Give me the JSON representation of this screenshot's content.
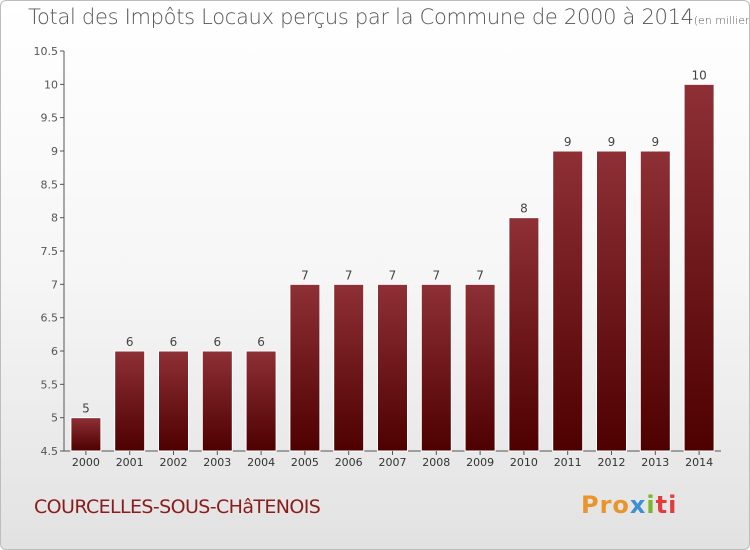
{
  "title": "Total des Impôts Locaux perçus par la Commune de 2000 à 2014",
  "subtitle": "(en milliers d'€)",
  "commune": "COURCELLES-SOUS-CHâTENOIS",
  "logo": {
    "parts": [
      "Pro",
      "x",
      "i",
      "ti"
    ],
    "colors": [
      "#e8962c",
      "#3d8fd6",
      "#78b72a",
      "#e23d3d"
    ]
  },
  "colors": {
    "bar_top": "#8e3036",
    "bar_bottom": "#4e0000",
    "axis": "#555555",
    "grid": "#c8c8c8"
  },
  "chart_data": {
    "type": "bar",
    "title": "Total des Impôts Locaux perçus par la Commune de 2000 à 2014",
    "categories": [
      "2000",
      "2001",
      "2002",
      "2003",
      "2004",
      "2005",
      "2006",
      "2007",
      "2008",
      "2009",
      "2010",
      "2011",
      "2012",
      "2013",
      "2014"
    ],
    "values": [
      5,
      6,
      6,
      6,
      6,
      7,
      7,
      7,
      7,
      7,
      8,
      9,
      9,
      9,
      10
    ],
    "value_labels": [
      "5",
      "6",
      "6",
      "6",
      "6",
      "7",
      "7",
      "7",
      "7",
      "7",
      "8",
      "9",
      "9",
      "9",
      "10"
    ],
    "ylim": [
      4.5,
      10.5
    ],
    "yticks": [
      4.5,
      5,
      5.5,
      6,
      6.5,
      7,
      7.5,
      8,
      8.5,
      9,
      9.5,
      10,
      10.5
    ],
    "ytick_labels": [
      "4.5",
      "5",
      "5.5",
      "6",
      "6.5",
      "7",
      "7.5",
      "8",
      "8.5",
      "9",
      "9.5",
      "10",
      "10.5"
    ],
    "grid": false,
    "xlabel": "",
    "ylabel": ""
  }
}
